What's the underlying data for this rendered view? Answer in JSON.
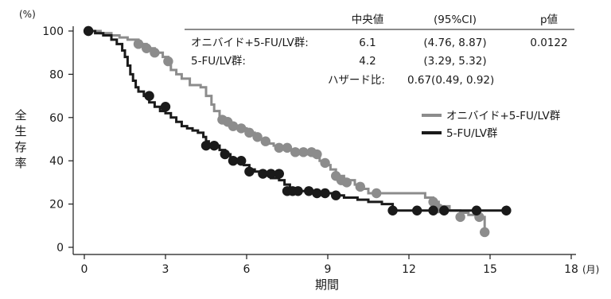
{
  "chart_data": {
    "type": "line",
    "subtype": "kaplan-meier survival curve with censor markers",
    "xlabel": "期間",
    "x_unit": "(月)",
    "ylabel": "全生存率",
    "y_unit": "(%)",
    "xlim": [
      0,
      18
    ],
    "ylim": [
      0,
      100
    ],
    "xticks": [
      0,
      3,
      6,
      9,
      12,
      15,
      18
    ],
    "yticks": [
      0,
      20,
      40,
      60,
      80,
      100
    ],
    "grid": false,
    "legend_position": "right-middle",
    "stats_table": {
      "headers": [
        "中央値",
        "(95%CI)",
        "p値"
      ],
      "rows": [
        {
          "label": "オニバイド+5-FU/LV群:",
          "median": "6.1",
          "ci": "(4.76, 8.87)",
          "p": "0.0122"
        },
        {
          "label": "5-FU/LV群:",
          "median": "4.2",
          "ci": "(3.29, 5.32)",
          "p": ""
        }
      ],
      "hazard_label": "ハザード比:",
      "hazard_value": "0.67(0.49, 0.92)"
    },
    "series": [
      {
        "name": "オニバイド+5-FU/LV群",
        "color": "#8c8c8c",
        "steps": [
          [
            0,
            100
          ],
          [
            0.6,
            99
          ],
          [
            1.0,
            98
          ],
          [
            1.3,
            97
          ],
          [
            1.6,
            96
          ],
          [
            2.0,
            94
          ],
          [
            2.3,
            92
          ],
          [
            2.6,
            90
          ],
          [
            2.9,
            88
          ],
          [
            3.1,
            86
          ],
          [
            3.2,
            82
          ],
          [
            3.4,
            80
          ],
          [
            3.6,
            78
          ],
          [
            3.9,
            75
          ],
          [
            4.3,
            74
          ],
          [
            4.5,
            70
          ],
          [
            4.7,
            66
          ],
          [
            4.8,
            63
          ],
          [
            5.0,
            60
          ],
          [
            5.2,
            58
          ],
          [
            5.4,
            57
          ],
          [
            5.6,
            56
          ],
          [
            5.8,
            55
          ],
          [
            6.0,
            53
          ],
          [
            6.3,
            52
          ],
          [
            6.4,
            50
          ],
          [
            6.6,
            49
          ],
          [
            6.8,
            48
          ],
          [
            7.0,
            47
          ],
          [
            7.2,
            46
          ],
          [
            7.5,
            45
          ],
          [
            7.8,
            44
          ],
          [
            8.0,
            43
          ],
          [
            8.5,
            42
          ],
          [
            8.7,
            40
          ],
          [
            8.9,
            38
          ],
          [
            9.1,
            36
          ],
          [
            9.3,
            33
          ],
          [
            9.6,
            31
          ],
          [
            10.0,
            29
          ],
          [
            10.3,
            27
          ],
          [
            10.5,
            25
          ],
          [
            12.6,
            23
          ],
          [
            12.9,
            21
          ],
          [
            13.1,
            19
          ],
          [
            13.5,
            17
          ],
          [
            13.9,
            16
          ],
          [
            14.2,
            15
          ],
          [
            14.6,
            14
          ],
          [
            14.8,
            7
          ]
        ],
        "end_x": 14.8,
        "censored": [
          [
            0.15,
            100
          ],
          [
            2.0,
            94
          ],
          [
            2.3,
            92
          ],
          [
            2.6,
            90
          ],
          [
            3.1,
            86
          ],
          [
            5.1,
            59
          ],
          [
            5.3,
            58
          ],
          [
            5.5,
            56
          ],
          [
            5.8,
            55
          ],
          [
            6.1,
            53
          ],
          [
            6.4,
            51
          ],
          [
            6.7,
            49
          ],
          [
            7.2,
            46
          ],
          [
            7.5,
            46
          ],
          [
            7.8,
            44
          ],
          [
            8.1,
            44
          ],
          [
            8.4,
            44
          ],
          [
            8.6,
            43
          ],
          [
            8.9,
            39
          ],
          [
            9.3,
            33
          ],
          [
            9.5,
            31
          ],
          [
            9.7,
            30
          ],
          [
            10.2,
            28
          ],
          [
            10.8,
            25
          ],
          [
            12.9,
            21
          ],
          [
            13.1,
            18
          ],
          [
            13.9,
            14
          ],
          [
            14.6,
            14
          ],
          [
            14.8,
            7
          ]
        ]
      },
      {
        "name": "5-FU/LV群",
        "color": "#1a1a1a",
        "steps": [
          [
            0,
            100
          ],
          [
            0.4,
            99
          ],
          [
            0.7,
            98
          ],
          [
            1.0,
            96
          ],
          [
            1.2,
            94
          ],
          [
            1.4,
            91
          ],
          [
            1.5,
            88
          ],
          [
            1.6,
            84
          ],
          [
            1.7,
            80
          ],
          [
            1.8,
            77
          ],
          [
            1.9,
            74
          ],
          [
            2.0,
            72
          ],
          [
            2.2,
            70
          ],
          [
            2.4,
            67
          ],
          [
            2.6,
            65
          ],
          [
            2.8,
            63
          ],
          [
            3.0,
            62
          ],
          [
            3.2,
            60
          ],
          [
            3.4,
            58
          ],
          [
            3.6,
            56
          ],
          [
            3.8,
            55
          ],
          [
            4.0,
            54
          ],
          [
            4.2,
            53
          ],
          [
            4.4,
            51
          ],
          [
            4.5,
            49
          ],
          [
            4.6,
            47
          ],
          [
            5.0,
            45
          ],
          [
            5.2,
            43
          ],
          [
            5.4,
            41
          ],
          [
            5.6,
            40
          ],
          [
            5.9,
            38
          ],
          [
            6.1,
            36
          ],
          [
            6.3,
            35
          ],
          [
            6.5,
            34
          ],
          [
            6.9,
            32
          ],
          [
            7.2,
            31
          ],
          [
            7.4,
            29
          ],
          [
            7.6,
            27
          ],
          [
            7.9,
            26
          ],
          [
            8.6,
            25
          ],
          [
            9.3,
            24
          ],
          [
            9.6,
            23
          ],
          [
            10.1,
            22
          ],
          [
            10.5,
            21
          ],
          [
            11.0,
            20
          ],
          [
            11.4,
            17
          ],
          [
            15.6,
            17
          ]
        ],
        "end_x": 15.6,
        "censored": [
          [
            0.15,
            100
          ],
          [
            2.4,
            70
          ],
          [
            3.0,
            65
          ],
          [
            4.5,
            47
          ],
          [
            4.8,
            47
          ],
          [
            5.2,
            43
          ],
          [
            5.5,
            40
          ],
          [
            5.8,
            40
          ],
          [
            6.1,
            35
          ],
          [
            6.6,
            34
          ],
          [
            6.9,
            34
          ],
          [
            7.2,
            34
          ],
          [
            7.5,
            26
          ],
          [
            7.7,
            26
          ],
          [
            7.9,
            26
          ],
          [
            8.3,
            26
          ],
          [
            8.6,
            25
          ],
          [
            8.9,
            25
          ],
          [
            9.3,
            24
          ],
          [
            11.4,
            17
          ],
          [
            12.3,
            17
          ],
          [
            12.9,
            17
          ],
          [
            13.3,
            17
          ],
          [
            14.5,
            17
          ],
          [
            15.6,
            17
          ]
        ]
      }
    ]
  }
}
